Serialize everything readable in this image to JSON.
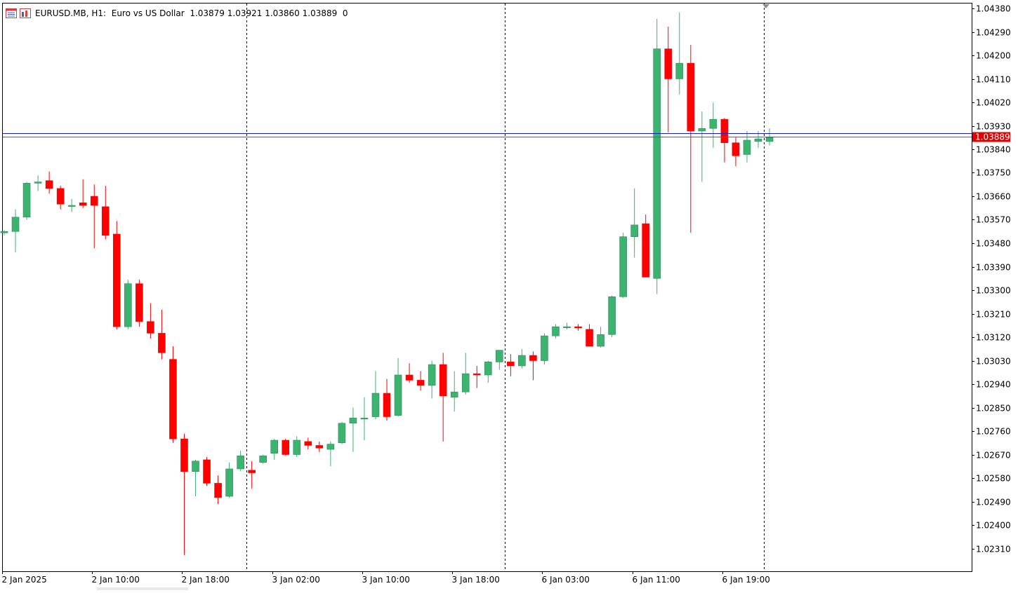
{
  "header": {
    "symbol": "EURUSD.MB",
    "timeframe": "H1:",
    "description": "Euro vs US Dollar",
    "ohlc": "1.03879 1.03921 1.03860 1.03889",
    "volume": "0",
    "icon_names": [
      "chart-menu-icon",
      "chart-template-icon"
    ]
  },
  "colors": {
    "bull": "#3cb371",
    "bear": "#ff0000",
    "bid_line": "#1a1ad8",
    "ask_line": "#c0392b",
    "price_tag_bg": "#e00000",
    "price_tag_text": "#ffffff",
    "grid_separator": "#000000"
  },
  "price_tag": "1.03889",
  "chart_data": {
    "type": "candlestick",
    "symbol": "EURUSD.MB",
    "timeframe": "H1",
    "ylim": [
      1.0227,
      1.0439
    ],
    "y_ticks": [
      "1.04380",
      "1.04290",
      "1.04200",
      "1.04110",
      "1.04020",
      "1.03930",
      "1.03840",
      "1.03750",
      "1.03660",
      "1.03570",
      "1.03480",
      "1.03390",
      "1.03300",
      "1.03210",
      "1.03120",
      "1.03030",
      "1.02940",
      "1.02850",
      "1.02760",
      "1.02670",
      "1.02580",
      "1.02490",
      "1.02400",
      "1.02310"
    ],
    "x_ticks": [
      "2 Jan 2025",
      "2 Jan 10:00",
      "2 Jan 18:00",
      "3 Jan 02:00",
      "3 Jan 10:00",
      "3 Jan 18:00",
      "6 Jan 03:00",
      "6 Jan 11:00",
      "6 Jan 19:00"
    ],
    "bid": 1.03889,
    "ask": 1.03902,
    "candles": [
      {
        "o": 1.0352,
        "h": 1.0353,
        "l": 1.0351,
        "c": 1.03525
      },
      {
        "o": 1.03525,
        "h": 1.0361,
        "l": 1.03445,
        "c": 1.0358
      },
      {
        "o": 1.0358,
        "h": 1.03715,
        "l": 1.0357,
        "c": 1.0371
      },
      {
        "o": 1.0371,
        "h": 1.0374,
        "l": 1.0368,
        "c": 1.03715
      },
      {
        "o": 1.0372,
        "h": 1.03755,
        "l": 1.0367,
        "c": 1.0369
      },
      {
        "o": 1.0369,
        "h": 1.037,
        "l": 1.0361,
        "c": 1.0363
      },
      {
        "o": 1.03625,
        "h": 1.0365,
        "l": 1.036,
        "c": 1.03625
      },
      {
        "o": 1.03635,
        "h": 1.03725,
        "l": 1.03615,
        "c": 1.03625
      },
      {
        "o": 1.0366,
        "h": 1.03705,
        "l": 1.0346,
        "c": 1.03625
      },
      {
        "o": 1.0362,
        "h": 1.037,
        "l": 1.03495,
        "c": 1.0351
      },
      {
        "o": 1.03515,
        "h": 1.03565,
        "l": 1.0315,
        "c": 1.0316
      },
      {
        "o": 1.0316,
        "h": 1.0334,
        "l": 1.0315,
        "c": 1.03325
      },
      {
        "o": 1.03325,
        "h": 1.0334,
        "l": 1.0316,
        "c": 1.0318
      },
      {
        "o": 1.0318,
        "h": 1.0325,
        "l": 1.03115,
        "c": 1.03135
      },
      {
        "o": 1.03135,
        "h": 1.03225,
        "l": 1.03035,
        "c": 1.0306
      },
      {
        "o": 1.03035,
        "h": 1.03085,
        "l": 1.02715,
        "c": 1.0273
      },
      {
        "o": 1.0273,
        "h": 1.0275,
        "l": 1.02285,
        "c": 1.02605
      },
      {
        "o": 1.02605,
        "h": 1.0265,
        "l": 1.0251,
        "c": 1.02645
      },
      {
        "o": 1.0265,
        "h": 1.0266,
        "l": 1.0255,
        "c": 1.0256
      },
      {
        "o": 1.0256,
        "h": 1.0259,
        "l": 1.0248,
        "c": 1.02505
      },
      {
        "o": 1.0251,
        "h": 1.0264,
        "l": 1.02505,
        "c": 1.02615
      },
      {
        "o": 1.02615,
        "h": 1.02685,
        "l": 1.02605,
        "c": 1.02665
      },
      {
        "o": 1.0261,
        "h": 1.02645,
        "l": 1.0254,
        "c": 1.026
      },
      {
        "o": 1.0264,
        "h": 1.0267,
        "l": 1.02635,
        "c": 1.02665
      },
      {
        "o": 1.02675,
        "h": 1.0273,
        "l": 1.0265,
        "c": 1.02725
      },
      {
        "o": 1.02725,
        "h": 1.0273,
        "l": 1.02665,
        "c": 1.0267
      },
      {
        "o": 1.0267,
        "h": 1.0274,
        "l": 1.0266,
        "c": 1.02725
      },
      {
        "o": 1.0272,
        "h": 1.02735,
        "l": 1.0269,
        "c": 1.02705
      },
      {
        "o": 1.02705,
        "h": 1.0272,
        "l": 1.0268,
        "c": 1.02695
      },
      {
        "o": 1.0269,
        "h": 1.0272,
        "l": 1.02625,
        "c": 1.0271
      },
      {
        "o": 1.02715,
        "h": 1.02795,
        "l": 1.0271,
        "c": 1.0279
      },
      {
        "o": 1.0279,
        "h": 1.0285,
        "l": 1.0268,
        "c": 1.0281
      },
      {
        "o": 1.0281,
        "h": 1.0289,
        "l": 1.02725,
        "c": 1.0281
      },
      {
        "o": 1.02815,
        "h": 1.0299,
        "l": 1.02805,
        "c": 1.02905
      },
      {
        "o": 1.02905,
        "h": 1.0296,
        "l": 1.028,
        "c": 1.02815
      },
      {
        "o": 1.0282,
        "h": 1.0304,
        "l": 1.02815,
        "c": 1.02975
      },
      {
        "o": 1.02975,
        "h": 1.0302,
        "l": 1.02945,
        "c": 1.02955
      },
      {
        "o": 1.02955,
        "h": 1.0299,
        "l": 1.02915,
        "c": 1.02935
      },
      {
        "o": 1.02935,
        "h": 1.0303,
        "l": 1.02885,
        "c": 1.03015
      },
      {
        "o": 1.03015,
        "h": 1.0306,
        "l": 1.0272,
        "c": 1.02895
      },
      {
        "o": 1.0289,
        "h": 1.0299,
        "l": 1.02835,
        "c": 1.0291
      },
      {
        "o": 1.0291,
        "h": 1.0306,
        "l": 1.029,
        "c": 1.0298
      },
      {
        "o": 1.0298,
        "h": 1.0301,
        "l": 1.02925,
        "c": 1.02975
      },
      {
        "o": 1.02975,
        "h": 1.0303,
        "l": 1.02945,
        "c": 1.03025
      },
      {
        "o": 1.03025,
        "h": 1.0307,
        "l": 1.02995,
        "c": 1.0307
      },
      {
        "o": 1.03025,
        "h": 1.03055,
        "l": 1.0297,
        "c": 1.0301
      },
      {
        "o": 1.0301,
        "h": 1.03075,
        "l": 1.03,
        "c": 1.0305
      },
      {
        "o": 1.0305,
        "h": 1.03065,
        "l": 1.02955,
        "c": 1.0303
      },
      {
        "o": 1.0303,
        "h": 1.03135,
        "l": 1.03015,
        "c": 1.03125
      },
      {
        "o": 1.03125,
        "h": 1.0317,
        "l": 1.03115,
        "c": 1.0316
      },
      {
        "o": 1.0316,
        "h": 1.03175,
        "l": 1.0315,
        "c": 1.0316
      },
      {
        "o": 1.0316,
        "h": 1.0317,
        "l": 1.03145,
        "c": 1.03155
      },
      {
        "o": 1.0315,
        "h": 1.0317,
        "l": 1.03085,
        "c": 1.03085
      },
      {
        "o": 1.03085,
        "h": 1.0316,
        "l": 1.0308,
        "c": 1.0313
      },
      {
        "o": 1.0313,
        "h": 1.0328,
        "l": 1.0312,
        "c": 1.03275
      },
      {
        "o": 1.03275,
        "h": 1.0352,
        "l": 1.0327,
        "c": 1.03505
      },
      {
        "o": 1.03505,
        "h": 1.0369,
        "l": 1.03425,
        "c": 1.0355
      },
      {
        "o": 1.03555,
        "h": 1.0359,
        "l": 1.0335,
        "c": 1.0335
      },
      {
        "o": 1.03345,
        "h": 1.0434,
        "l": 1.03285,
        "c": 1.04225
      },
      {
        "o": 1.04225,
        "h": 1.0431,
        "l": 1.03905,
        "c": 1.0411
      },
      {
        "o": 1.0411,
        "h": 1.04365,
        "l": 1.0405,
        "c": 1.0417
      },
      {
        "o": 1.0417,
        "h": 1.0424,
        "l": 1.0352,
        "c": 1.0391
      },
      {
        "o": 1.0391,
        "h": 1.03985,
        "l": 1.03715,
        "c": 1.0392
      },
      {
        "o": 1.0392,
        "h": 1.0402,
        "l": 1.03845,
        "c": 1.03955
      },
      {
        "o": 1.03955,
        "h": 1.0396,
        "l": 1.0379,
        "c": 1.03865
      },
      {
        "o": 1.03865,
        "h": 1.03885,
        "l": 1.03775,
        "c": 1.03815
      },
      {
        "o": 1.0382,
        "h": 1.0391,
        "l": 1.0379,
        "c": 1.03875
      },
      {
        "o": 1.0387,
        "h": 1.0391,
        "l": 1.03845,
        "c": 1.0388
      },
      {
        "o": 1.0387,
        "h": 1.0392,
        "l": 1.03855,
        "c": 1.03885
      }
    ]
  }
}
